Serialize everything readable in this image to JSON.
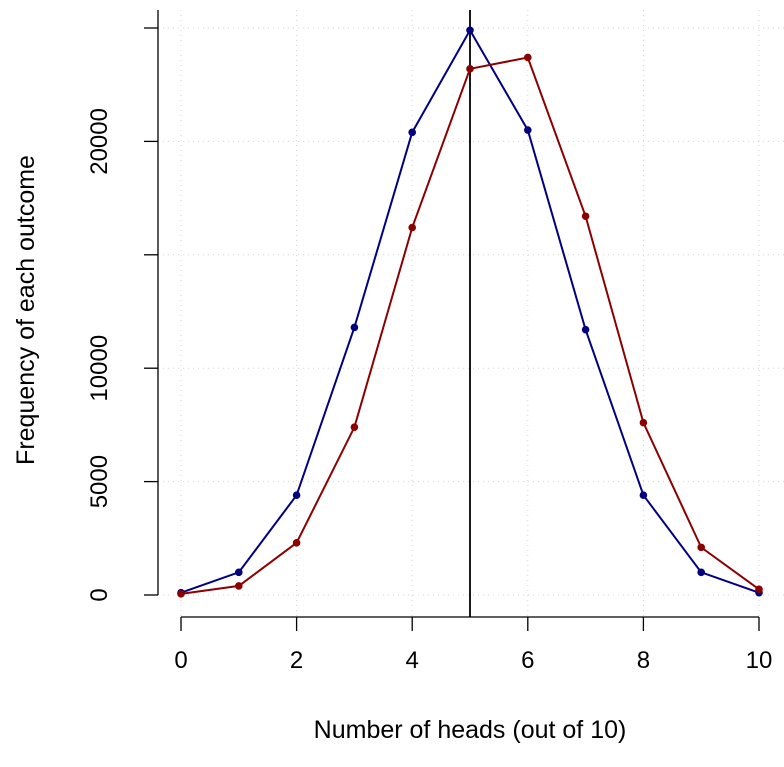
{
  "chart_data": {
    "type": "line",
    "title": "",
    "xlabel": "Number of heads (out of 10)",
    "ylabel": "Frequency of each outcome",
    "x": [
      0,
      1,
      2,
      3,
      4,
      5,
      6,
      7,
      8,
      9,
      10
    ],
    "xlim": [
      0,
      10
    ],
    "ylim": [
      0,
      25000
    ],
    "x_ticks": [
      "0",
      "2",
      "4",
      "6",
      "8",
      "10"
    ],
    "y_ticks": [
      "0",
      "5000",
      "10000",
      "20000"
    ],
    "grid": true,
    "reference_line": {
      "x": 5,
      "color": "#000000"
    },
    "series": [
      {
        "color": "#000080",
        "values": [
          100,
          1000,
          4400,
          11800,
          20400,
          24900,
          20500,
          11700,
          4400,
          1000,
          100
        ]
      },
      {
        "color": "#8B0000",
        "values": [
          50,
          400,
          2300,
          7400,
          16200,
          23200,
          23700,
          16700,
          7600,
          2100,
          250
        ]
      }
    ]
  }
}
